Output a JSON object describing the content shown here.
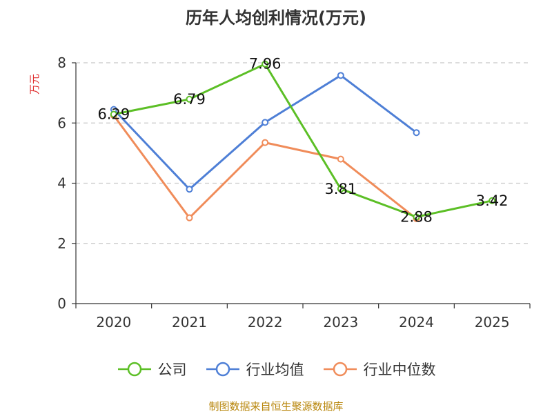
{
  "chart_data": {
    "type": "line",
    "title": "历年人均创利情况(万元)",
    "ylabel": "万元",
    "xlabel": "",
    "categories": [
      "2020",
      "2021",
      "2022",
      "2023",
      "2024",
      "2025"
    ],
    "ylim": [
      0,
      8
    ],
    "yticks": [
      0,
      2,
      4,
      6,
      8
    ],
    "grid": true,
    "legend_position": "bottom",
    "series": [
      {
        "name": "公司",
        "color": "#5cbf26",
        "values": [
          6.29,
          6.79,
          7.96,
          3.81,
          2.88,
          3.42
        ],
        "labels": [
          "6.29",
          "6.79",
          "7.96",
          "3.81",
          "2.88",
          "3.42"
        ],
        "show_labels": true
      },
      {
        "name": "行业均值",
        "color": "#4e7fd6",
        "values": [
          6.45,
          3.8,
          6.02,
          7.58,
          5.68,
          null
        ],
        "show_labels": false
      },
      {
        "name": "行业中位数",
        "color": "#f08c5a",
        "values": [
          6.25,
          2.85,
          5.35,
          4.8,
          2.82,
          null
        ],
        "show_labels": false
      }
    ]
  },
  "ylabel_color": "#e03030",
  "source_text": "制图数据来自恒生聚源数据库",
  "source_color": "#b8860b"
}
